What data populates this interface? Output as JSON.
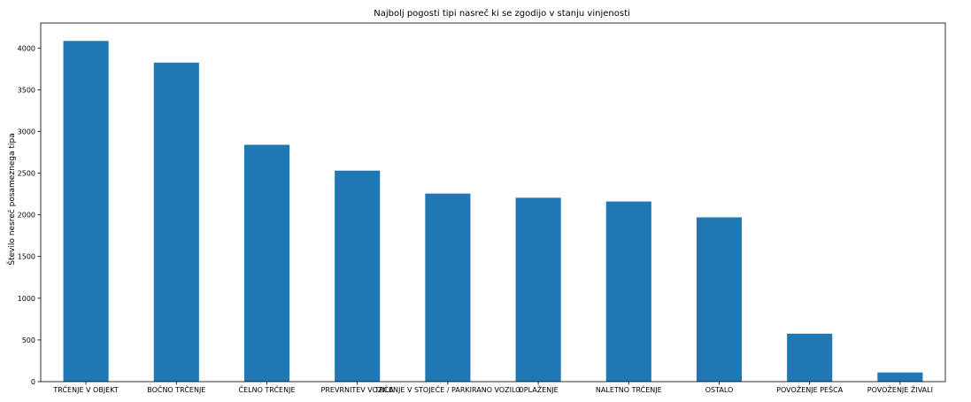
{
  "chart_data": {
    "type": "bar",
    "title": "Najbolj pogosti tipi nasreč ki se zgodijo v stanju vinjenosti",
    "xlabel": "",
    "ylabel": "Število nesreč posameznega tipa",
    "categories": [
      "TRČENJE V OBJEKT",
      "BOČNO TRČENJE",
      "ČELNO TRČENJE",
      "PREVRNITEV VOZILA",
      "TRČENJE V STOJEČE / PARKIRANO VOZILO",
      "OPLAŽENJE",
      "NALETNO TRČENJE",
      "OSTALO",
      "POVOŽENJE PEŠCA",
      "POVOŽENJE ŽIVALI"
    ],
    "values": [
      4085,
      3825,
      2840,
      2530,
      2255,
      2205,
      2160,
      1970,
      575,
      110
    ],
    "ylim": [
      0,
      4300
    ],
    "yticks": [
      0,
      500,
      1000,
      1500,
      2000,
      2500,
      3000,
      3500,
      4000
    ],
    "bar_color": "#1f77b4",
    "grid": false,
    "legend": "none"
  }
}
